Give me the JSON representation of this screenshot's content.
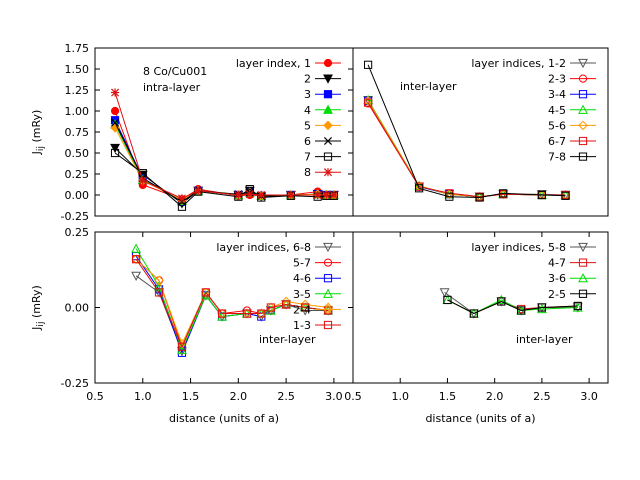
{
  "colors": {
    "black": "#000000",
    "red": "#ff0000",
    "blue": "#0000ff",
    "green": "#00dd00",
    "orange": "#ff9900",
    "crimson": "#dd1111",
    "gray": "#555555"
  },
  "chart_data": [
    {
      "id": "tl",
      "type": "line",
      "title_lines": [
        "8 Co/Cu001",
        "intra-layer"
      ],
      "ylabel": "J_ij (mRy)",
      "xlabel": "",
      "xlim": [
        0.5,
        3.2
      ],
      "ylim": [
        -0.25,
        1.75
      ],
      "xticks": [],
      "yticks": [
        -0.25,
        0.0,
        0.25,
        0.5,
        0.75,
        1.0,
        1.25,
        1.5,
        1.75
      ],
      "ytick_labels": [
        "-0.25",
        "0.00",
        "0.25",
        "0.50",
        "0.75",
        "1.00",
        "1.25",
        "1.50",
        "1.75"
      ],
      "legend_title": "layer index,",
      "series": [
        {
          "name": "1",
          "color": "#ff0000",
          "marker": "filled-circle",
          "x": [
            0.71,
            1.0,
            1.41,
            1.58,
            2.0,
            2.12,
            2.24,
            2.55,
            2.83,
            2.92,
            3.0
          ],
          "y": [
            1.0,
            0.12,
            -0.05,
            0.07,
            -0.01,
            0.0,
            -0.01,
            0.0,
            0.04,
            -0.01,
            -0.01
          ]
        },
        {
          "name": "2",
          "color": "#000000",
          "marker": "filled-tri-down",
          "x": [
            0.71,
            1.0,
            1.41,
            1.58,
            2.0,
            2.12,
            2.24,
            2.55,
            2.83,
            2.92,
            3.0
          ],
          "y": [
            0.56,
            0.24,
            -0.1,
            0.05,
            0.0,
            0.05,
            -0.02,
            0.0,
            0.01,
            0.0,
            0.0
          ]
        },
        {
          "name": "3",
          "color": "#0000ff",
          "marker": "filled-square",
          "x": [
            0.71,
            1.0,
            1.41,
            1.58,
            2.0,
            2.12,
            2.24,
            2.55,
            2.83,
            2.92,
            3.0
          ],
          "y": [
            0.89,
            0.2,
            -0.08,
            0.05,
            0.0,
            0.03,
            -0.01,
            0.0,
            0.01,
            0.0,
            0.0
          ]
        },
        {
          "name": "4",
          "color": "#00dd00",
          "marker": "filled-tri-up",
          "x": [
            0.71,
            1.0,
            1.41,
            1.58,
            2.0,
            2.12,
            2.24,
            2.55,
            2.83,
            2.92,
            3.0
          ],
          "y": [
            0.84,
            0.18,
            -0.07,
            0.05,
            0.0,
            0.03,
            -0.01,
            0.0,
            0.01,
            0.0,
            0.0
          ]
        },
        {
          "name": "5",
          "color": "#ff9900",
          "marker": "filled-diamond",
          "x": [
            0.71,
            1.0,
            1.41,
            1.58,
            2.0,
            2.12,
            2.24,
            2.55,
            2.83,
            2.92,
            3.0
          ],
          "y": [
            0.8,
            0.17,
            -0.06,
            0.05,
            0.0,
            0.03,
            -0.01,
            0.0,
            0.01,
            0.0,
            0.0
          ]
        },
        {
          "name": "6",
          "color": "#000000",
          "marker": "cross",
          "x": [
            0.71,
            1.0,
            1.41,
            1.58,
            2.0,
            2.12,
            2.24,
            2.55,
            2.83,
            2.92,
            3.0
          ],
          "y": [
            0.86,
            0.2,
            -0.08,
            0.05,
            0.01,
            0.03,
            -0.01,
            0.0,
            0.0,
            0.0,
            0.0
          ]
        },
        {
          "name": "7",
          "color": "#000000",
          "marker": "open-square",
          "x": [
            0.71,
            1.0,
            1.41,
            1.58,
            2.0,
            2.12,
            2.24,
            2.55,
            2.83,
            2.92,
            3.0
          ],
          "y": [
            0.5,
            0.26,
            -0.14,
            0.04,
            -0.02,
            0.07,
            -0.03,
            -0.01,
            -0.02,
            -0.01,
            -0.01
          ]
        },
        {
          "name": "8",
          "color": "#dd1111",
          "marker": "star",
          "x": [
            0.71,
            1.0,
            1.41,
            1.58,
            2.0,
            2.12,
            2.24,
            2.55,
            2.83,
            2.92,
            3.0
          ],
          "y": [
            1.22,
            0.17,
            -0.04,
            0.05,
            0.0,
            0.01,
            0.0,
            0.0,
            0.0,
            0.0,
            0.0
          ]
        }
      ]
    },
    {
      "id": "tr",
      "type": "line",
      "title_lines": [
        "inter-layer"
      ],
      "ylabel": "",
      "xlabel": "",
      "xlim": [
        0.5,
        3.2
      ],
      "ylim": [
        -0.25,
        1.75
      ],
      "xticks": [],
      "yticks": [],
      "legend_title": "layer indices,",
      "series": [
        {
          "name": "1-2",
          "color": "#555555",
          "marker": "open-tri-down",
          "x": [
            0.66,
            1.2,
            1.52,
            1.84,
            2.09,
            2.5,
            2.75
          ],
          "y": [
            1.13,
            0.1,
            0.01,
            -0.02,
            0.01,
            0.01,
            0.0
          ]
        },
        {
          "name": "2-3",
          "color": "#ff0000",
          "marker": "open-circle",
          "x": [
            0.66,
            1.2,
            1.52,
            1.84,
            2.09,
            2.5,
            2.75
          ],
          "y": [
            1.09,
            0.1,
            0.02,
            -0.02,
            0.01,
            0.0,
            0.0
          ]
        },
        {
          "name": "3-4",
          "color": "#0000ff",
          "marker": "open-square",
          "x": [
            0.66,
            1.2,
            1.52,
            1.84,
            2.09,
            2.5,
            2.75
          ],
          "y": [
            1.12,
            0.1,
            0.01,
            -0.02,
            0.01,
            0.0,
            0.0
          ]
        },
        {
          "name": "4-5",
          "color": "#00dd00",
          "marker": "open-tri-up",
          "x": [
            0.66,
            1.2,
            1.52,
            1.84,
            2.09,
            2.5,
            2.75
          ],
          "y": [
            1.13,
            0.11,
            0.01,
            -0.02,
            0.01,
            0.0,
            0.0
          ]
        },
        {
          "name": "5-6",
          "color": "#ff9900",
          "marker": "open-diamond",
          "x": [
            0.66,
            1.2,
            1.52,
            1.84,
            2.09,
            2.5,
            2.75
          ],
          "y": [
            1.12,
            0.11,
            0.01,
            -0.02,
            0.01,
            0.0,
            0.0
          ]
        },
        {
          "name": "6-7",
          "color": "#dd1111",
          "marker": "open-square",
          "x": [
            0.66,
            1.2,
            1.52,
            1.84,
            2.09,
            2.5,
            2.75
          ],
          "y": [
            1.1,
            0.1,
            0.02,
            -0.02,
            0.01,
            0.0,
            0.0
          ]
        },
        {
          "name": "7-8",
          "color": "#000000",
          "marker": "open-square",
          "x": [
            0.66,
            1.2,
            1.52,
            1.84,
            2.09,
            2.5,
            2.75
          ],
          "y": [
            1.55,
            0.08,
            -0.02,
            -0.03,
            0.02,
            0.0,
            -0.01
          ]
        }
      ]
    },
    {
      "id": "bl",
      "type": "line",
      "title_lines": [
        "inter-layer"
      ],
      "ylabel": "J_ij (mRy)",
      "xlabel": "distance (units of a)",
      "xlim": [
        0.5,
        3.2
      ],
      "ylim": [
        -0.25,
        0.25
      ],
      "xticks": [
        0.5,
        1.0,
        1.5,
        2.0,
        2.5,
        3.0
      ],
      "xtick_labels": [
        "0.5",
        "1.0",
        "1.5",
        "2.0",
        "2.5",
        "3.0"
      ],
      "yticks": [
        -0.25,
        0.0,
        0.25
      ],
      "ytick_labels": [
        "-0.25",
        "0.00",
        "0.25"
      ],
      "legend_title": "layer indices,",
      "series": [
        {
          "name": "6-8",
          "color": "#555555",
          "marker": "open-tri-down",
          "x": [
            0.93,
            1.17,
            1.41,
            1.66,
            1.83,
            2.09,
            2.24,
            2.34,
            2.5,
            2.7,
            2.94
          ],
          "y": [
            0.105,
            0.05,
            -0.145,
            0.04,
            -0.03,
            -0.02,
            -0.03,
            -0.01,
            0.01,
            -0.01,
            -0.01
          ]
        },
        {
          "name": "5-7",
          "color": "#ff0000",
          "marker": "open-circle",
          "x": [
            0.93,
            1.17,
            1.41,
            1.66,
            1.83,
            2.09,
            2.24,
            2.34,
            2.5,
            2.7,
            2.94
          ],
          "y": [
            0.16,
            0.09,
            -0.13,
            0.05,
            -0.02,
            -0.01,
            -0.02,
            -0.01,
            0.01,
            0.0,
            -0.01
          ]
        },
        {
          "name": "4-6",
          "color": "#0000ff",
          "marker": "open-square",
          "x": [
            0.93,
            1.17,
            1.41,
            1.66,
            1.83,
            2.09,
            2.24,
            2.34,
            2.5,
            2.7,
            2.94
          ],
          "y": [
            0.17,
            0.06,
            -0.15,
            0.04,
            -0.03,
            -0.02,
            -0.03,
            -0.01,
            0.01,
            0.0,
            -0.01
          ]
        },
        {
          "name": "3-5",
          "color": "#00dd00",
          "marker": "open-tri-up",
          "x": [
            0.93,
            1.17,
            1.41,
            1.66,
            1.83,
            2.09,
            2.24,
            2.34,
            2.5,
            2.7,
            2.94
          ],
          "y": [
            0.195,
            0.07,
            -0.14,
            0.04,
            -0.03,
            -0.02,
            -0.02,
            -0.01,
            0.01,
            0.0,
            -0.01
          ]
        },
        {
          "name": "2-4",
          "color": "#ff9900",
          "marker": "open-diamond",
          "x": [
            0.93,
            1.17,
            1.41,
            1.66,
            1.83,
            2.09,
            2.24,
            2.34,
            2.5,
            2.7,
            2.94
          ],
          "y": [
            0.16,
            0.09,
            -0.12,
            0.05,
            -0.02,
            -0.02,
            -0.02,
            0.0,
            0.02,
            0.01,
            0.0
          ]
        },
        {
          "name": "1-3",
          "color": "#dd1111",
          "marker": "open-square",
          "x": [
            0.93,
            1.17,
            1.41,
            1.66,
            1.83,
            2.09,
            2.24,
            2.34,
            2.5,
            2.7,
            2.94
          ],
          "y": [
            0.16,
            0.05,
            -0.13,
            0.05,
            -0.02,
            -0.02,
            -0.02,
            0.0,
            0.01,
            0.0,
            -0.01
          ]
        }
      ]
    },
    {
      "id": "br",
      "type": "line",
      "title_lines": [
        "inter-layer"
      ],
      "ylabel": "",
      "xlabel": "distance (units of a)",
      "xlim": [
        0.5,
        3.2
      ],
      "ylim": [
        -0.25,
        0.25
      ],
      "xticks": [
        0.5,
        1.0,
        1.5,
        2.0,
        2.5,
        3.0
      ],
      "xtick_labels": [
        "0.5",
        "1.0",
        "1.5",
        "2.0",
        "2.5",
        "3.0"
      ],
      "yticks": [],
      "legend_title": "layer indices,",
      "series": [
        {
          "name": "5-8",
          "color": "#555555",
          "marker": "open-tri-down",
          "x": [
            1.47,
            1.78,
            2.07,
            2.28,
            2.5,
            2.88
          ],
          "y": [
            0.05,
            -0.02,
            0.02,
            -0.01,
            0.0,
            0.0
          ]
        },
        {
          "name": "4-7",
          "color": "#dd1111",
          "marker": "open-square",
          "x": [
            1.5,
            1.78,
            2.07,
            2.28,
            2.5,
            2.88
          ],
          "y": [
            0.025,
            -0.02,
            0.02,
            -0.005,
            0.0,
            0.005
          ]
        },
        {
          "name": "3-6",
          "color": "#00dd00",
          "marker": "open-tri-up",
          "x": [
            1.5,
            1.78,
            2.07,
            2.28,
            2.5,
            2.88
          ],
          "y": [
            0.025,
            -0.02,
            0.025,
            -0.01,
            -0.005,
            0.0
          ]
        },
        {
          "name": "2-5",
          "color": "#000000",
          "marker": "open-square",
          "x": [
            1.5,
            1.78,
            2.07,
            2.28,
            2.5,
            2.88
          ],
          "y": [
            0.025,
            -0.02,
            0.02,
            -0.01,
            0.0,
            0.005
          ]
        }
      ]
    }
  ]
}
